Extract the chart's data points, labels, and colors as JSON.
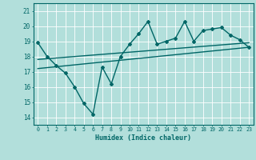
{
  "xlabel": "Humidex (Indice chaleur)",
  "background_color": "#b2dfdb",
  "grid_color": "#80c8c0",
  "line_color": "#006666",
  "xlim": [
    -0.5,
    23.5
  ],
  "ylim": [
    13.5,
    21.5
  ],
  "yticks": [
    14,
    15,
    16,
    17,
    18,
    19,
    20,
    21
  ],
  "xticks": [
    0,
    1,
    2,
    3,
    4,
    5,
    6,
    7,
    8,
    9,
    10,
    11,
    12,
    13,
    14,
    15,
    16,
    17,
    18,
    19,
    20,
    21,
    22,
    23
  ],
  "main_line_x": [
    0,
    1,
    2,
    3,
    4,
    5,
    6,
    7,
    8,
    9,
    10,
    11,
    12,
    13,
    14,
    15,
    16,
    17,
    18,
    19,
    20,
    21,
    22,
    23
  ],
  "main_line_y": [
    18.9,
    18.0,
    17.4,
    16.9,
    16.0,
    14.9,
    14.2,
    17.3,
    16.2,
    18.0,
    18.8,
    19.5,
    20.3,
    18.8,
    19.0,
    19.2,
    20.3,
    19.0,
    19.7,
    19.8,
    19.9,
    19.4,
    19.1,
    18.6
  ],
  "trend1_x": [
    0,
    23
  ],
  "trend1_y": [
    17.8,
    18.9
  ],
  "trend2_x": [
    0,
    23
  ],
  "trend2_y": [
    17.2,
    18.6
  ]
}
